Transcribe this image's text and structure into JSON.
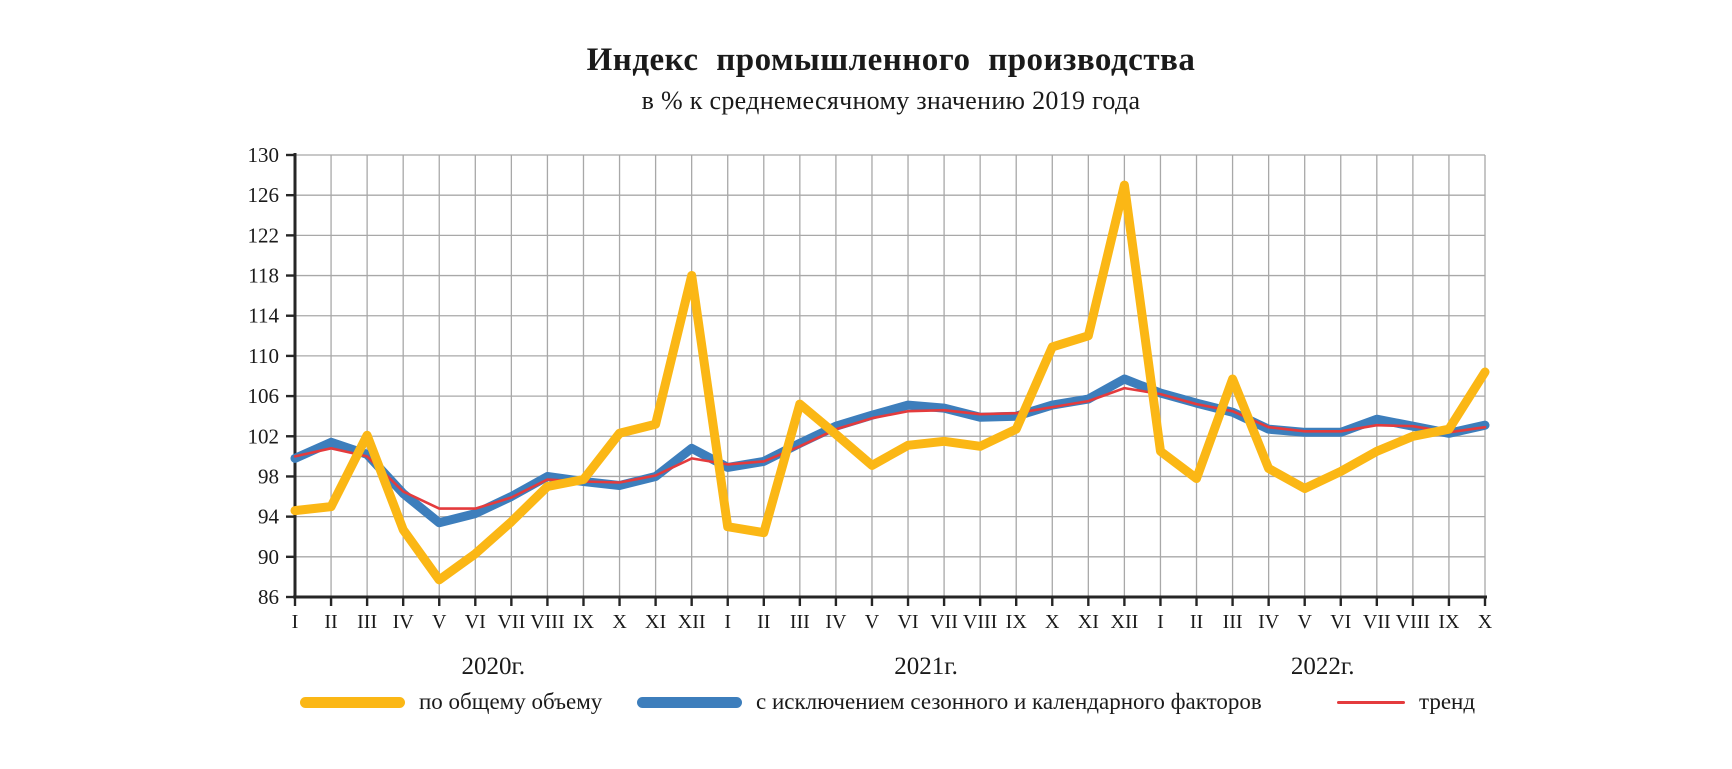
{
  "chart_data": {
    "type": "line",
    "title": "Индекс промышленного производства",
    "subtitle": "в % к среднемесячному значению 2019 года",
    "ylim": [
      86,
      130
    ],
    "yticks": [
      86,
      90,
      94,
      98,
      102,
      106,
      110,
      114,
      118,
      122,
      126,
      130
    ],
    "grid": true,
    "legend_position": "bottom",
    "x_month_labels": [
      "I",
      "II",
      "III",
      "IV",
      "V",
      "VI",
      "VII",
      "VIII",
      "IX",
      "X",
      "XI",
      "XII",
      "I",
      "II",
      "III",
      "IV",
      "V",
      "VI",
      "VII",
      "VIII",
      "IX",
      "X",
      "XI",
      "XII",
      "I",
      "II",
      "III",
      "IV",
      "V",
      "VI",
      "VII",
      "VIII",
      "IX",
      "X"
    ],
    "year_groups": [
      {
        "label": "2020г.",
        "start": 0,
        "end": 11
      },
      {
        "label": "2021г.",
        "start": 12,
        "end": 23
      },
      {
        "label": "2022г.",
        "start": 24,
        "end": 33
      }
    ],
    "series": [
      {
        "key": "total-volume",
        "name": "по общему объему",
        "color": "#FBB715",
        "line_width": 9,
        "values": [
          94.6,
          95.0,
          102.1,
          92.7,
          87.7,
          90.3,
          93.5,
          97.0,
          97.7,
          102.3,
          103.2,
          118.0,
          93.0,
          92.4,
          105.2,
          102.2,
          99.1,
          101.1,
          101.5,
          101.0,
          102.7,
          110.9,
          112.0,
          127.0,
          100.5,
          97.8,
          107.7,
          98.8,
          96.8,
          98.5,
          100.5,
          102.0,
          102.7,
          108.4
        ]
      },
      {
        "key": "seasonally-adjusted",
        "name": "с исключением сезонного и календарного факторов",
        "color": "#3D7EBC",
        "line_width": 9,
        "values": [
          99.8,
          101.4,
          100.2,
          96.3,
          93.4,
          94.3,
          96.0,
          98.0,
          97.5,
          97.1,
          98.0,
          100.8,
          98.9,
          99.5,
          101.3,
          103.0,
          104.1,
          105.1,
          104.8,
          103.9,
          104.0,
          105.1,
          105.7,
          107.7,
          106.3,
          105.3,
          104.4,
          102.7,
          102.4,
          102.4,
          103.7,
          103.0,
          102.3,
          103.1
        ]
      },
      {
        "key": "trend",
        "name": "тренд",
        "color": "#E43B3D",
        "line_width": 2.6,
        "values": [
          100.0,
          100.8,
          100.0,
          96.5,
          94.8,
          94.8,
          95.9,
          97.7,
          97.5,
          97.4,
          98.1,
          99.8,
          99.2,
          99.5,
          101.0,
          102.7,
          103.8,
          104.5,
          104.6,
          104.2,
          104.3,
          104.9,
          105.5,
          106.8,
          106.2,
          105.2,
          104.5,
          102.9,
          102.5,
          102.5,
          103.1,
          103.0,
          102.4,
          102.9
        ]
      }
    ]
  },
  "colors": {
    "grid": "#A8A8A8",
    "axis": "#262626",
    "text": "#1A1A1A",
    "background": "#FFFFFF"
  }
}
